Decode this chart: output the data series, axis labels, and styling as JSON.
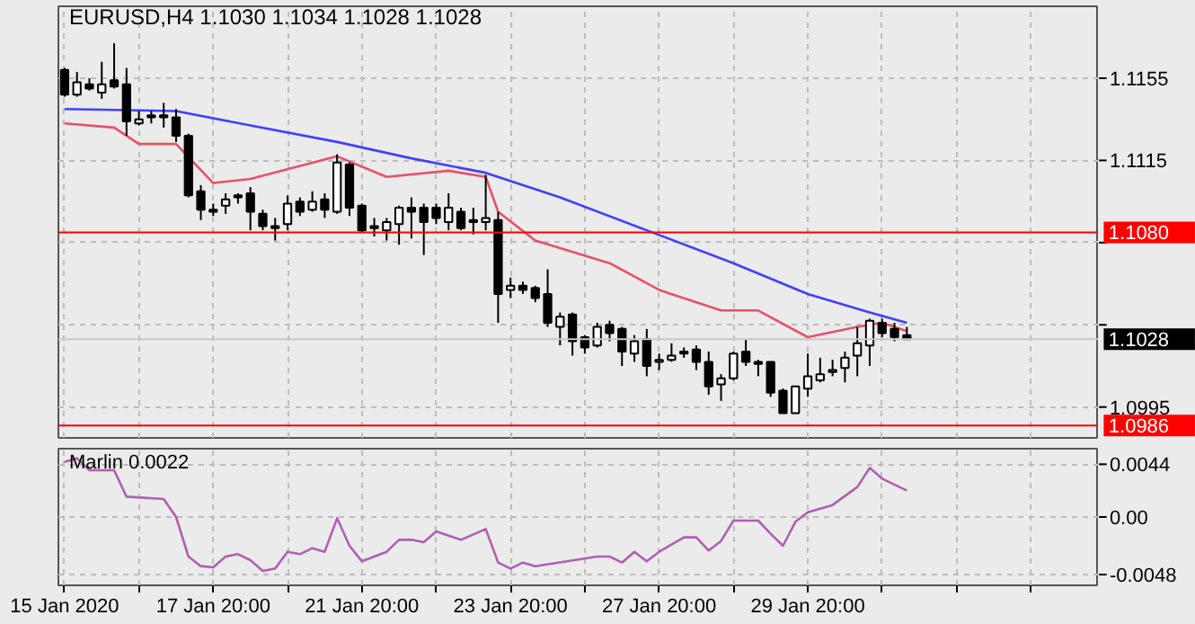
{
  "chart_data": [
    {
      "type": "candlestick",
      "title": "EURUSD,H4 1.1030 1.1034 1.1028 1.1028",
      "categories": [
        null,
        null,
        null,
        null,
        null,
        null,
        null,
        null,
        null,
        null,
        null,
        null,
        null,
        null,
        null,
        null,
        null,
        null,
        null,
        null,
        null,
        null,
        null,
        null,
        null,
        null,
        null,
        null,
        null,
        null,
        null,
        null,
        null,
        null,
        null,
        null,
        null,
        null,
        null,
        null,
        null,
        null,
        null,
        null,
        null,
        null,
        null,
        null,
        null,
        null,
        null,
        null,
        null,
        null,
        null,
        null,
        null,
        null,
        null,
        null,
        null,
        null,
        null,
        null,
        null,
        null,
        null,
        null,
        null,
        null,
        null,
        null,
        null,
        null,
        null,
        null,
        null,
        null,
        null,
        null,
        null,
        null,
        null,
        null
      ],
      "ohlc": [
        [
          1.1159,
          1.116,
          1.1146,
          1.1147
        ],
        [
          1.1147,
          1.1158,
          1.1146,
          1.1153
        ],
        [
          1.1152,
          1.1155,
          1.1149,
          1.115
        ],
        [
          1.1148,
          1.1163,
          1.1145,
          1.1152
        ],
        [
          1.1154,
          1.1172,
          1.115,
          1.1151
        ],
        [
          1.1152,
          1.116,
          1.1127,
          1.1134
        ],
        [
          1.1133,
          1.1139,
          1.1132,
          1.1135
        ],
        [
          1.1137,
          1.1139,
          1.1133,
          1.1136
        ],
        [
          1.1137,
          1.1143,
          1.1131,
          1.1136
        ],
        [
          1.1136,
          1.114,
          1.1124,
          1.1127
        ],
        [
          1.1127,
          1.1128,
          1.1097,
          1.1098
        ],
        [
          1.11,
          1.1103,
          1.1086,
          1.1091
        ],
        [
          1.1091,
          1.1094,
          1.1088,
          1.109
        ],
        [
          1.1093,
          1.1099,
          1.1089,
          1.1096
        ],
        [
          1.1098,
          1.1099,
          1.1094,
          1.1097
        ],
        [
          1.1099,
          1.1102,
          1.1081,
          1.109
        ],
        [
          1.1089,
          1.1091,
          1.1081,
          1.1083
        ],
        [
          1.1083,
          1.1087,
          1.1076,
          1.1082
        ],
        [
          1.1084,
          1.1098,
          1.1081,
          1.1094
        ],
        [
          1.1095,
          1.1097,
          1.1088,
          1.109
        ],
        [
          1.1091,
          1.11,
          1.109,
          1.1095
        ],
        [
          1.1096,
          1.1099,
          1.1087,
          1.1091
        ],
        [
          1.109,
          1.1118,
          1.1089,
          1.1114
        ],
        [
          1.1113,
          1.1114,
          1.1088,
          1.1092
        ],
        [
          1.1093,
          1.1094,
          1.108,
          1.1081
        ],
        [
          1.1083,
          1.1087,
          1.1078,
          1.1082
        ],
        [
          1.1081,
          1.1087,
          1.1076,
          1.1085
        ],
        [
          1.1084,
          1.1093,
          1.1074,
          1.1092
        ],
        [
          1.1092,
          1.1097,
          1.1077,
          1.109
        ],
        [
          1.1092,
          1.1094,
          1.1069,
          1.1085
        ],
        [
          1.1092,
          1.1094,
          1.1084,
          1.1087
        ],
        [
          1.1085,
          1.1099,
          1.1081,
          1.1092
        ],
        [
          1.109,
          1.1092,
          1.1081,
          1.1082
        ],
        [
          1.1086,
          1.1092,
          1.1079,
          1.1085
        ],
        [
          1.1085,
          1.1108,
          1.1081,
          1.1087
        ],
        [
          1.1086,
          1.109,
          1.1036,
          1.105
        ],
        [
          1.1052,
          1.1058,
          1.1048,
          1.1054
        ],
        [
          1.1054,
          1.1056,
          1.105,
          1.1052
        ],
        [
          1.1053,
          1.1054,
          1.1046,
          1.1048
        ],
        [
          1.105,
          1.1062,
          1.1034,
          1.1036
        ],
        [
          1.1034,
          1.1041,
          1.1025,
          1.1039
        ],
        [
          1.104,
          1.1041,
          1.102,
          1.1027
        ],
        [
          1.1029,
          1.103,
          1.1021,
          1.1024
        ],
        [
          1.1025,
          1.1036,
          1.1024,
          1.1034
        ],
        [
          1.1035,
          1.1037,
          1.1027,
          1.1031
        ],
        [
          1.1033,
          1.1034,
          1.1015,
          1.1022
        ],
        [
          1.1021,
          1.103,
          1.1017,
          1.1027
        ],
        [
          1.1028,
          1.1033,
          1.101,
          1.1015
        ],
        [
          1.1017,
          1.1021,
          1.1013,
          1.1018
        ],
        [
          1.1018,
          1.1026,
          1.1017,
          1.102
        ],
        [
          1.1022,
          1.1024,
          1.1019,
          1.1021
        ],
        [
          1.1023,
          1.1025,
          1.1013,
          1.1017
        ],
        [
          1.1017,
          1.1022,
          1.1001,
          1.1005
        ],
        [
          1.1006,
          1.1011,
          1.0998,
          1.1009
        ],
        [
          1.1009,
          1.1022,
          1.1008,
          1.1021
        ],
        [
          1.1022,
          1.1028,
          1.1015,
          1.1017
        ],
        [
          1.1017,
          1.1018,
          1.101,
          1.1016
        ],
        [
          1.1017,
          1.1017,
          1.1,
          1.1002
        ],
        [
          1.1003,
          1.1004,
          1.0992,
          1.0992
        ],
        [
          1.0992,
          1.1005,
          1.0992,
          1.1005
        ],
        [
          1.1004,
          1.1021,
          1.1,
          1.101
        ],
        [
          1.1008,
          1.1019,
          1.1007,
          1.1011
        ],
        [
          1.1012,
          1.1018,
          1.101,
          1.1013
        ],
        [
          1.1014,
          1.1022,
          1.1007,
          1.1019
        ],
        [
          1.102,
          1.1034,
          1.101,
          1.1026
        ],
        [
          1.1025,
          1.1038,
          1.1015,
          1.1037
        ],
        [
          1.1036,
          1.1038,
          1.1029,
          1.1031
        ],
        [
          1.1033,
          1.1036,
          1.1027,
          1.1029
        ],
        [
          1.103,
          1.1034,
          1.1028,
          1.1028
        ],
        null,
        null,
        null,
        null,
        null,
        null,
        null,
        null,
        null,
        null,
        null,
        null,
        null,
        null,
        null
      ],
      "series": [
        {
          "type": "line",
          "color": "#4040ff",
          "values": [
            1.114,
            null,
            null,
            null,
            null,
            null,
            null,
            null,
            null,
            1.1139,
            null,
            null,
            null,
            null,
            null,
            1.1132,
            null,
            null,
            null,
            null,
            null,
            null,
            1.1124,
            null,
            null,
            null,
            null,
            null,
            1.1116,
            null,
            null,
            null,
            null,
            null,
            1.1109,
            null,
            null,
            null,
            null,
            null,
            1.1097,
            null,
            null,
            null,
            null,
            null,
            null,
            1.1081,
            null,
            null,
            null,
            null,
            null,
            null,
            1.1065,
            null,
            null,
            null,
            null,
            null,
            1.105,
            null,
            null,
            null,
            null,
            1.1041,
            null,
            null,
            1.1036,
            null,
            null,
            null,
            null,
            null,
            null,
            null,
            null,
            null,
            null,
            null,
            null,
            null,
            null,
            null
          ]
        },
        {
          "type": "line",
          "color": "#e8506a",
          "values": [
            1.1133,
            null,
            null,
            null,
            1.1131,
            null,
            1.1123,
            null,
            null,
            1.1123,
            null,
            null,
            1.1104,
            null,
            null,
            1.1106,
            null,
            null,
            null,
            null,
            null,
            null,
            1.1117,
            null,
            null,
            null,
            1.1107,
            null,
            null,
            null,
            null,
            1.111,
            null,
            null,
            1.1107,
            1.109,
            null,
            null,
            1.1076,
            null,
            null,
            null,
            null,
            null,
            1.1065,
            null,
            null,
            null,
            1.1052,
            null,
            null,
            null,
            null,
            1.1042,
            null,
            null,
            1.1042,
            null,
            null,
            null,
            1.1029,
            null,
            null,
            null,
            1.1034,
            null,
            1.1036,
            null,
            1.1032,
            null,
            null,
            null,
            null,
            null,
            null,
            null,
            null,
            null,
            null,
            null,
            null,
            null,
            null,
            null
          ]
        }
      ],
      "ylim": [
        1.098,
        1.119
      ],
      "yticks": [
        1.1155,
        1.1115,
        {
          "value": 1.1075,
          "label": null
        },
        {
          "value": 1.1035,
          "label": null
        },
        1.0995
      ],
      "ref_lines": [
        {
          "axis": "y",
          "value": 1.108,
          "label": "1.1080",
          "color": "#ff0000"
        },
        {
          "axis": "y",
          "value": 1.0986,
          "label": "1.0986",
          "color": "#ff0000"
        },
        {
          "axis": "y",
          "value": 1.1028,
          "label": "1.1028",
          "color": "#c8c8c8"
        }
      ],
      "grid": true,
      "tick_labels": "y"
    },
    {
      "type": "line",
      "title": "Marlin 0.0022",
      "categories": [
        "15 Jan 2020",
        null,
        null,
        null,
        null,
        null,
        null,
        null,
        null,
        null,
        null,
        null,
        "17 Jan 20:00",
        null,
        null,
        null,
        null,
        null,
        null,
        null,
        null,
        null,
        null,
        null,
        "21 Jan 20:00",
        null,
        null,
        null,
        null,
        null,
        null,
        null,
        null,
        null,
        null,
        null,
        "23 Jan 20:00",
        null,
        null,
        null,
        null,
        null,
        null,
        null,
        null,
        null,
        null,
        null,
        "27 Jan 20:00",
        null,
        null,
        null,
        null,
        null,
        null,
        null,
        null,
        null,
        null,
        null,
        "29 Jan 20:00",
        null,
        null,
        null,
        null,
        null,
        null,
        null,
        null,
        null,
        null,
        null,
        null,
        null,
        null,
        null,
        null,
        null,
        null,
        null,
        null,
        null,
        null,
        null
      ],
      "series": [
        {
          "color": "#b060b0",
          "values": [
            0.0046,
            0.0049,
            0.0039,
            null,
            0.0039,
            0.0017,
            null,
            null,
            0.0015,
            0.0,
            -0.0033,
            -0.0041,
            -0.0042,
            -0.0033,
            -0.0031,
            -0.0036,
            -0.0045,
            -0.0043,
            -0.0029,
            -0.0031,
            -0.0026,
            -0.0029,
            -0.0001,
            -0.0024,
            -0.0037,
            -0.0033,
            -0.0029,
            -0.0019,
            -0.0019,
            -0.0021,
            -0.0012,
            null,
            -0.0019,
            null,
            -0.001,
            -0.0038,
            -0.0043,
            -0.0038,
            -0.0041,
            null,
            null,
            null,
            null,
            -0.0033,
            -0.0033,
            -0.0038,
            -0.0029,
            -0.0037,
            -0.0029,
            null,
            -0.0017,
            -0.0017,
            -0.0028,
            -0.002,
            -0.0003,
            null,
            -0.0003,
            -0.0014,
            -0.0024,
            -0.0004,
            0.0004,
            null,
            0.001,
            null,
            0.0025,
            0.0041,
            0.0032,
            null,
            0.0022,
            null,
            null,
            null,
            null,
            null,
            null,
            null,
            null,
            null,
            null,
            null,
            null,
            null,
            null,
            null
          ]
        }
      ],
      "ylim": [
        -0.0057,
        0.0057
      ],
      "yticks": [
        0.0044,
        {
          "value": 0,
          "label": "0.00"
        },
        -0.0048
      ],
      "grid": true
    }
  ]
}
